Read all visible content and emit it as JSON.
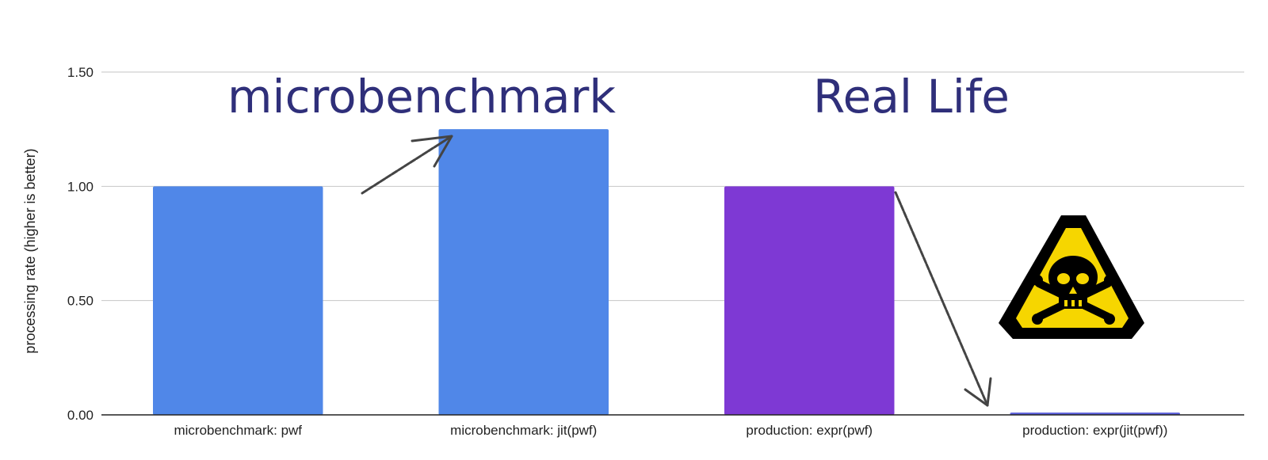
{
  "chart_data": {
    "type": "bar",
    "categories": [
      "microbenchmark: pwf",
      "microbenchmark: jit(pwf)",
      "production: expr(pwf)",
      "production: expr(jit(pwf))"
    ],
    "values": [
      1.0,
      1.25,
      1.0,
      0.01
    ],
    "bar_colors": [
      "#5087e8",
      "#5087e8",
      "#7e39d4",
      "#5b5fdc"
    ],
    "ylabel": "processing rate (higher is better)",
    "xlabel": "",
    "ylim": [
      0,
      1.5
    ],
    "yticks": [
      "0.00",
      "0.50",
      "1.00",
      "1.50"
    ],
    "grid": true,
    "annotations": [
      {
        "text": "microbenchmark",
        "color": "#2f2f7a"
      },
      {
        "text": "Real Life",
        "color": "#2f2f7a"
      }
    ],
    "icons": [
      "skull-crossbones-warning-icon"
    ]
  }
}
